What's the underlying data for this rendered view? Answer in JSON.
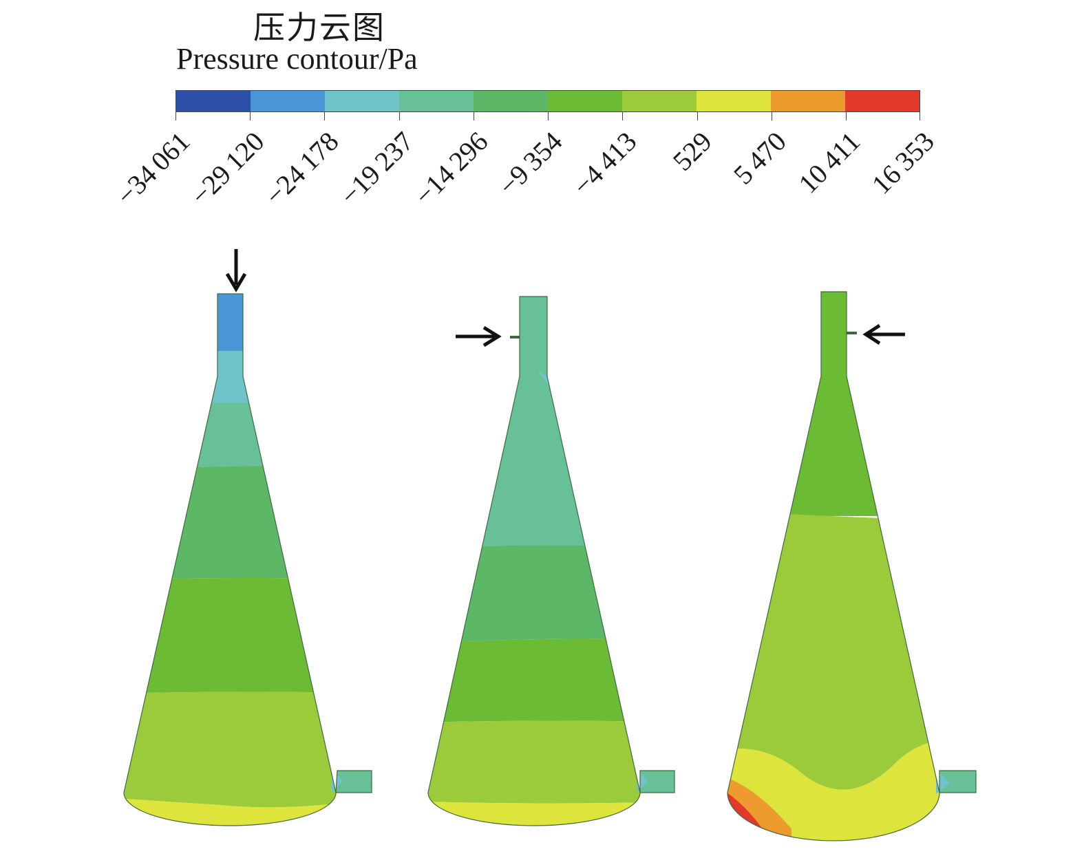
{
  "title_cn": "压力云图",
  "title_en": "Pressure contour/Pa",
  "legend": {
    "ticks": [
      "−34 061",
      "−29 120",
      "−24 178",
      "−19 237",
      "−14 296",
      "−9 354",
      "−4 413",
      "529",
      "5 470",
      "10 411",
      "16 353"
    ],
    "colors": [
      "#2e4fa8",
      "#4a95d6",
      "#6ec4c8",
      "#68c099",
      "#5cb766",
      "#6cbb35",
      "#9bcb3b",
      "#dde43c",
      "#ed9a2e",
      "#e23a2a"
    ]
  },
  "arrows": {
    "left_contour": "down-arrow",
    "middle_contour": "right-arrow",
    "right_contour": "left-arrow"
  }
}
